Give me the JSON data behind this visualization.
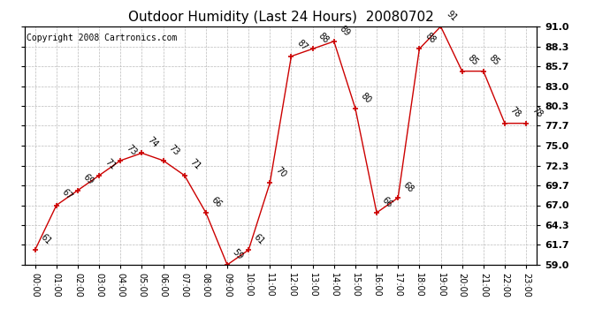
{
  "title": "Outdoor Humidity (Last 24 Hours)  20080702",
  "copyright": "Copyright 2008 Cartronics.com",
  "hours": [
    "00:00",
    "01:00",
    "02:00",
    "03:00",
    "04:00",
    "05:00",
    "06:00",
    "07:00",
    "08:00",
    "09:00",
    "10:00",
    "11:00",
    "12:00",
    "13:00",
    "14:00",
    "15:00",
    "16:00",
    "17:00",
    "18:00",
    "19:00",
    "20:00",
    "21:00",
    "22:00",
    "23:00"
  ],
  "values": [
    61,
    67,
    69,
    71,
    73,
    74,
    73,
    71,
    66,
    59,
    61,
    70,
    87,
    88,
    89,
    80,
    66,
    68,
    88,
    91,
    85,
    85,
    78,
    78
  ],
  "ylim": [
    59.0,
    91.0
  ],
  "yticks": [
    59.0,
    61.7,
    64.3,
    67.0,
    69.7,
    72.3,
    75.0,
    77.7,
    80.3,
    83.0,
    85.7,
    88.3,
    91.0
  ],
  "line_color": "#cc0000",
  "marker_color": "#cc0000",
  "bg_color": "#ffffff",
  "grid_color": "#bbbbbb",
  "title_fontsize": 11,
  "copyright_fontsize": 7,
  "annotation_fontsize": 7,
  "tick_fontsize": 7,
  "annotation_rotation": 315
}
